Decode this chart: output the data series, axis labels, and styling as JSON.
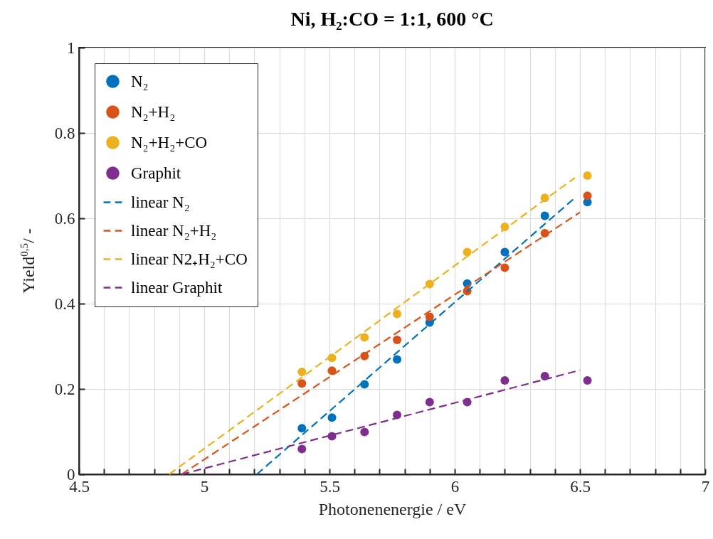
{
  "chart_data": {
    "type": "scatter",
    "title": "Ni, H₂:CO = 1:1, 600 °C",
    "xlabel": "Photonenenergie / eV",
    "ylabel": "Yield$^{0,5}$/ -",
    "xlim": [
      4.5,
      7
    ],
    "ylim": [
      0,
      1
    ],
    "xticks": [
      4.5,
      {
        "value": 4.6,
        "label": null
      },
      {
        "value": 4.7,
        "label": null
      },
      {
        "value": 4.8,
        "label": null
      },
      {
        "value": 4.9,
        "label": null
      },
      5,
      {
        "value": 5.1,
        "label": null
      },
      {
        "value": 5.2,
        "label": null
      },
      {
        "value": 5.3,
        "label": null
      },
      {
        "value": 5.4,
        "label": null
      },
      5.5,
      {
        "value": 5.6,
        "label": null
      },
      {
        "value": 5.7,
        "label": null
      },
      {
        "value": 5.8,
        "label": null
      },
      {
        "value": 5.9,
        "label": null
      },
      6,
      {
        "value": 6.1,
        "label": null
      },
      {
        "value": 6.2,
        "label": null
      },
      {
        "value": 6.3,
        "label": null
      },
      {
        "value": 6.4,
        "label": null
      },
      6.5,
      {
        "value": 6.6,
        "label": null
      },
      {
        "value": 6.7,
        "label": null
      },
      {
        "value": 6.8,
        "label": null
      },
      {
        "value": 6.9,
        "label": null
      },
      7
    ],
    "yticks": [
      0,
      0.2,
      0.4,
      0.6,
      0.8,
      1
    ],
    "grid": true,
    "legend": "top left",
    "x": [
      5.39,
      5.51,
      5.64,
      5.77,
      5.9,
      6.05,
      6.2,
      6.36,
      6.53
    ],
    "series": [
      {
        "name": "N₂",
        "marker": "circle",
        "color": "#0072bd",
        "values": [
          0.108,
          0.133,
          0.211,
          0.269,
          0.356,
          0.447,
          0.521,
          0.606,
          0.638
        ]
      },
      {
        "name": "N₂+H₂",
        "marker": "circle",
        "color": "#d95319",
        "values": [
          0.213,
          0.243,
          0.277,
          0.315,
          0.369,
          0.429,
          0.484,
          0.565,
          0.653
        ]
      },
      {
        "name": "N₂+H₂+CO",
        "marker": "circle",
        "color": "#edb120",
        "values": [
          0.24,
          0.273,
          0.321,
          0.376,
          0.446,
          0.521,
          0.58,
          0.648,
          0.7
        ]
      },
      {
        "name": "Graphit",
        "marker": "circle",
        "color": "#7e2f8e",
        "values": [
          0.059,
          0.089,
          0.099,
          0.139,
          0.169,
          0.169,
          0.22,
          0.23,
          0.22
        ]
      },
      {
        "name": "linear N₂",
        "type": "line",
        "marker": "none",
        "line_style": "dashed",
        "color": "#0072bd",
        "x": [
          5.21,
          6.48
        ],
        "values": [
          0,
          0.648
        ]
      },
      {
        "name": "linear N₂+H₂",
        "type": "line",
        "marker": "none",
        "line_style": "dashed",
        "color": "#d95319",
        "x": [
          4.91,
          6.5
        ],
        "values": [
          0,
          0.614
        ]
      },
      {
        "name": "linear N2₊H₂+CO",
        "type": "line",
        "marker": "none",
        "line_style": "dashed",
        "color": "#edb120",
        "x": [
          4.86,
          6.48
        ],
        "values": [
          0,
          0.695
        ]
      },
      {
        "name": "linear Graphit",
        "type": "line",
        "marker": "none",
        "line_style": "dashed",
        "color": "#7e2f8e",
        "x": [
          4.91,
          6.5
        ],
        "values": [
          0,
          0.244
        ]
      }
    ]
  }
}
